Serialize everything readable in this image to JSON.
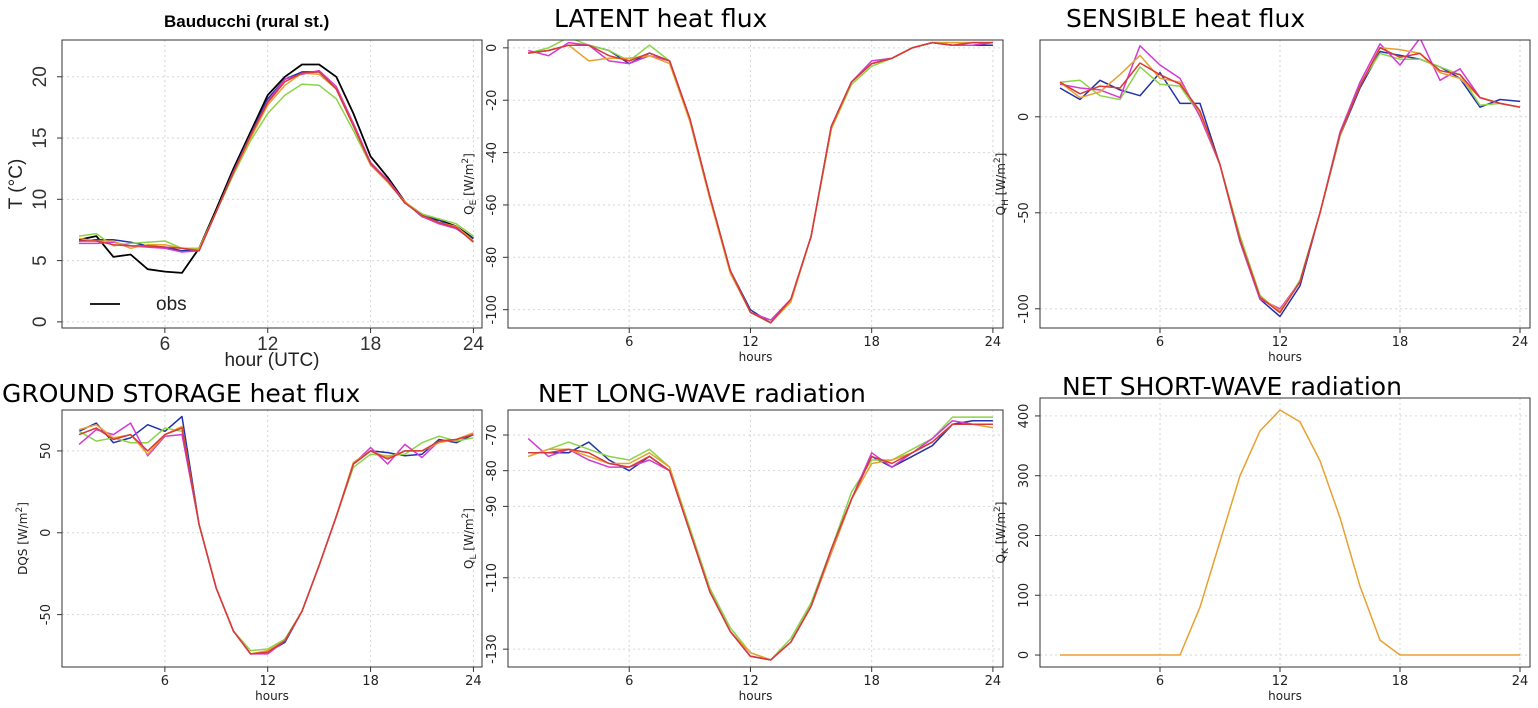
{
  "chart_data": [
    {
      "type": "line",
      "title": "Bauducchi (rural st.)",
      "xlabel": "hour (UTC)",
      "ylabel": "T (°C)",
      "xlim": [
        0,
        24.5
      ],
      "ylim": [
        -0.5,
        23
      ],
      "xticks": [
        6,
        12,
        18,
        24
      ],
      "yticks": [
        0,
        5,
        10,
        15,
        20
      ],
      "grid": true,
      "legend": {
        "position": "bottom-left",
        "entries": [
          "obs"
        ]
      },
      "x": [
        1,
        2,
        3,
        4,
        5,
        6,
        7,
        8,
        9,
        10,
        11,
        12,
        13,
        14,
        15,
        16,
        17,
        18,
        19,
        20,
        21,
        22,
        23,
        24
      ],
      "series": [
        {
          "name": "obs",
          "color": "#000000",
          "values": [
            6.7,
            7.0,
            5.3,
            5.5,
            4.3,
            4.1,
            4.0,
            6.0,
            9.2,
            12.5,
            15.5,
            18.5,
            20.0,
            21.0,
            21.0,
            20.0,
            17.0,
            13.5,
            11.8,
            9.8,
            8.6,
            8.3,
            7.8,
            6.8
          ]
        },
        {
          "color": "#2233aa",
          "values": [
            6.6,
            6.7,
            6.7,
            6.5,
            6.2,
            6.1,
            5.8,
            5.9,
            9.0,
            12.3,
            15.3,
            18.2,
            19.8,
            20.4,
            20.4,
            19.0,
            16.0,
            13.0,
            11.5,
            9.7,
            8.8,
            8.3,
            7.6,
            6.8
          ]
        },
        {
          "color": "#8bd448",
          "values": [
            7.0,
            7.2,
            6.2,
            6.4,
            6.5,
            6.6,
            6.0,
            6.0,
            9.0,
            12.0,
            14.8,
            17.0,
            18.5,
            19.4,
            19.3,
            18.2,
            15.6,
            12.8,
            11.4,
            9.8,
            8.8,
            8.4,
            8.0,
            7.0
          ]
        },
        {
          "color": "#d43ad4",
          "values": [
            6.4,
            6.4,
            6.5,
            6.2,
            6.1,
            6.0,
            5.7,
            5.8,
            9.0,
            12.2,
            15.2,
            18.0,
            19.8,
            20.2,
            20.5,
            19.2,
            16.2,
            13.0,
            11.6,
            9.8,
            8.6,
            8.0,
            7.6,
            6.6
          ]
        },
        {
          "color": "#e8a030",
          "values": [
            6.8,
            6.6,
            6.6,
            6.0,
            6.3,
            6.3,
            6.0,
            5.9,
            9.0,
            12.2,
            15.0,
            17.7,
            19.3,
            20.3,
            20.2,
            19.0,
            16.0,
            12.8,
            11.4,
            9.8,
            8.7,
            8.1,
            7.8,
            6.6
          ]
        },
        {
          "color": "#d83a3a",
          "values": [
            6.6,
            6.6,
            6.3,
            6.2,
            6.2,
            6.1,
            6.0,
            5.8,
            9.0,
            12.2,
            15.2,
            17.9,
            19.6,
            20.3,
            20.4,
            19.0,
            16.0,
            12.9,
            11.5,
            9.7,
            8.7,
            8.1,
            7.7,
            6.5
          ]
        }
      ]
    },
    {
      "type": "line",
      "title": "LATENT heat flux",
      "xlabel": "hours",
      "ylabel": "Q_E [W/m^2]",
      "xlim": [
        0,
        24.5
      ],
      "ylim": [
        -107,
        3
      ],
      "xticks": [
        6,
        12,
        18,
        24
      ],
      "yticks": [
        0,
        -20,
        -40,
        -60,
        -80,
        -100
      ],
      "grid": true,
      "x": [
        1,
        2,
        3,
        4,
        5,
        6,
        7,
        8,
        9,
        10,
        11,
        12,
        13,
        14,
        15,
        16,
        17,
        18,
        19,
        20,
        21,
        22,
        23,
        24
      ],
      "series": [
        {
          "color": "#2233aa",
          "values": [
            -2,
            -1,
            1,
            1,
            -1,
            -6,
            -2,
            -5,
            -27,
            -57,
            -85,
            -100,
            -105,
            -96,
            -72,
            -30,
            -13,
            -6,
            -4,
            0,
            2,
            1,
            1,
            1
          ]
        },
        {
          "color": "#8bd448",
          "values": [
            -2,
            0,
            4,
            1,
            -1,
            -5,
            1,
            -5,
            -27,
            -57,
            -85,
            -101,
            -105,
            -96,
            -72,
            -31,
            -14,
            -7,
            -4,
            0,
            2,
            2,
            2,
            2
          ]
        },
        {
          "color": "#d43ad4",
          "values": [
            -1,
            -3,
            2,
            1,
            -5,
            -6,
            -3,
            -5,
            -27,
            -57,
            -85,
            -101,
            -104,
            -96,
            -72,
            -30,
            -13,
            -5,
            -4,
            0,
            2,
            1,
            1,
            2
          ]
        },
        {
          "color": "#e8a030",
          "values": [
            -2,
            -1,
            1,
            -5,
            -4,
            -4,
            -3,
            -6,
            -28,
            -58,
            -86,
            -101,
            -105,
            -97,
            -72,
            -31,
            -13,
            -6,
            -4,
            0,
            2,
            2,
            2,
            2
          ]
        },
        {
          "color": "#d83a3a",
          "values": [
            -2,
            -1,
            1,
            1,
            -3,
            -5,
            -2,
            -5,
            -27,
            -57,
            -85,
            -101,
            -105,
            -96,
            -72,
            -30,
            -13,
            -6,
            -4,
            0,
            2,
            1,
            2,
            2
          ]
        }
      ]
    },
    {
      "type": "line",
      "title": "SENSIBLE heat flux",
      "xlabel": "hours",
      "ylabel": "Q_H [W/m^2]",
      "xlim": [
        0,
        24.5
      ],
      "ylim": [
        -110,
        40
      ],
      "xticks": [
        6,
        12,
        18,
        24
      ],
      "yticks": [
        0,
        -50,
        -100
      ],
      "grid": true,
      "x": [
        1,
        2,
        3,
        4,
        5,
        6,
        7,
        8,
        9,
        10,
        11,
        12,
        13,
        14,
        15,
        16,
        17,
        18,
        19,
        20,
        21,
        22,
        23,
        24
      ],
      "series": [
        {
          "color": "#2233aa",
          "values": [
            15,
            9,
            19,
            14,
            11,
            23,
            7,
            7,
            -25,
            -65,
            -95,
            -104,
            -88,
            -50,
            -10,
            15,
            34,
            32,
            30,
            26,
            20,
            5,
            9,
            8
          ]
        },
        {
          "color": "#8bd448",
          "values": [
            18,
            19,
            11,
            9,
            26,
            17,
            16,
            1,
            -25,
            -62,
            -93,
            -102,
            -85,
            -50,
            -10,
            17,
            33,
            30,
            30,
            26,
            22,
            6,
            7,
            5
          ]
        },
        {
          "color": "#d43ad4",
          "values": [
            17,
            15,
            14,
            10,
            37,
            27,
            20,
            0,
            -25,
            -65,
            -95,
            -100,
            -86,
            -50,
            -8,
            18,
            38,
            27,
            41,
            19,
            25,
            10,
            7,
            5
          ]
        },
        {
          "color": "#e8a030",
          "values": [
            18,
            10,
            13,
            22,
            32,
            20,
            18,
            2,
            -25,
            -64,
            -94,
            -101,
            -86,
            -50,
            -9,
            16,
            36,
            35,
            33,
            23,
            20,
            10,
            7,
            5
          ]
        },
        {
          "color": "#d83a3a",
          "values": [
            18,
            12,
            16,
            15,
            28,
            22,
            17,
            3,
            -25,
            -64,
            -94,
            -102,
            -86,
            -50,
            -9,
            16,
            36,
            31,
            33,
            24,
            22,
            10,
            7,
            5
          ]
        }
      ]
    },
    {
      "type": "line",
      "title": "GROUND STORAGE heat flux",
      "xlabel": "hours",
      "ylabel": "DQS [W/m^2]",
      "xlim": [
        0,
        24.5
      ],
      "ylim": [
        -82,
        75
      ],
      "xticks": [
        6,
        12,
        18,
        24
      ],
      "yticks": [
        50,
        0,
        -50
      ],
      "grid": true,
      "x": [
        1,
        2,
        3,
        4,
        5,
        6,
        7,
        8,
        9,
        10,
        11,
        12,
        13,
        14,
        15,
        16,
        17,
        18,
        19,
        20,
        21,
        22,
        23,
        24
      ],
      "series": [
        {
          "color": "#2233aa",
          "values": [
            62,
            67,
            55,
            58,
            66,
            62,
            71,
            5,
            -34,
            -60,
            -74,
            -73,
            -67,
            -48,
            -20,
            10,
            42,
            50,
            49,
            47,
            48,
            57,
            55,
            60
          ]
        },
        {
          "color": "#8bd448",
          "values": [
            62,
            56,
            58,
            55,
            55,
            64,
            62,
            5,
            -34,
            -60,
            -72,
            -71,
            -65,
            -48,
            -20,
            10,
            40,
            48,
            47,
            48,
            55,
            59,
            56,
            58
          ]
        },
        {
          "color": "#d43ad4",
          "values": [
            54,
            63,
            60,
            67,
            47,
            59,
            60,
            5,
            -34,
            -60,
            -74,
            -74,
            -66,
            -48,
            -20,
            10,
            42,
            52,
            42,
            54,
            46,
            56,
            57,
            61
          ]
        },
        {
          "color": "#e8a030",
          "values": [
            63,
            66,
            58,
            60,
            48,
            60,
            65,
            5,
            -34,
            -60,
            -74,
            -72,
            -66,
            -48,
            -20,
            10,
            43,
            50,
            46,
            50,
            50,
            55,
            57,
            61
          ]
        },
        {
          "color": "#d83a3a",
          "values": [
            60,
            64,
            57,
            60,
            50,
            60,
            64,
            5,
            -34,
            -60,
            -74,
            -73,
            -66,
            -48,
            -20,
            10,
            42,
            50,
            45,
            50,
            50,
            56,
            57,
            60
          ]
        }
      ]
    },
    {
      "type": "line",
      "title": "NET LONG-WAVE radiation",
      "xlabel": "hours",
      "ylabel": "Q_L [W/m^2]",
      "xlim": [
        0,
        24.5
      ],
      "ylim": [
        -135,
        -63
      ],
      "xticks": [
        6,
        12,
        18,
        24
      ],
      "yticks": [
        -70,
        -80,
        -90,
        -110,
        -130
      ],
      "grid": true,
      "x": [
        1,
        2,
        3,
        4,
        5,
        6,
        7,
        8,
        9,
        10,
        11,
        12,
        13,
        14,
        15,
        16,
        17,
        18,
        19,
        20,
        21,
        22,
        23,
        24
      ],
      "series": [
        {
          "color": "#2233aa",
          "values": [
            -75,
            -75,
            -75,
            -72,
            -77,
            -80,
            -76,
            -80,
            -97,
            -114,
            -125,
            -132,
            -133,
            -128,
            -118,
            -103,
            -88,
            -76,
            -79,
            -76,
            -73,
            -67,
            -66,
            -66
          ]
        },
        {
          "color": "#8bd448",
          "values": [
            -76,
            -74,
            -72,
            -74,
            -76,
            -77,
            -74,
            -79,
            -96,
            -113,
            -124,
            -131,
            -133,
            -127,
            -117,
            -102,
            -86,
            -77,
            -77,
            -74,
            -71,
            -65,
            -65,
            -65
          ]
        },
        {
          "color": "#d43ad4",
          "values": [
            -71,
            -76,
            -74,
            -77,
            -79,
            -79,
            -77,
            -80,
            -97,
            -114,
            -125,
            -132,
            -133,
            -128,
            -118,
            -102,
            -88,
            -75,
            -79,
            -75,
            -71,
            -66,
            -67,
            -67
          ]
        },
        {
          "color": "#e8a030",
          "values": [
            -76,
            -74,
            -74,
            -76,
            -78,
            -78,
            -75,
            -79,
            -97,
            -114,
            -125,
            -131,
            -133,
            -128,
            -118,
            -103,
            -88,
            -78,
            -77,
            -75,
            -72,
            -67,
            -67,
            -68
          ]
        },
        {
          "color": "#d83a3a",
          "values": [
            -75,
            -75,
            -74,
            -75,
            -78,
            -79,
            -76,
            -80,
            -97,
            -114,
            -125,
            -132,
            -133,
            -128,
            -118,
            -102,
            -88,
            -76,
            -78,
            -75,
            -72,
            -67,
            -67,
            -67
          ]
        }
      ]
    },
    {
      "type": "line",
      "title": "NET SHORT-WAVE radiation",
      "xlabel": "hours",
      "ylabel": "Q_K [W/m^2]",
      "xlim": [
        0,
        24.5
      ],
      "ylim": [
        -20,
        430
      ],
      "xticks": [
        6,
        12,
        18,
        24
      ],
      "yticks": [
        0,
        100,
        200,
        300,
        400
      ],
      "grid": true,
      "x": [
        1,
        2,
        3,
        4,
        5,
        6,
        7,
        8,
        9,
        10,
        11,
        12,
        13,
        14,
        15,
        16,
        17,
        18,
        19,
        20,
        21,
        22,
        23,
        24
      ],
      "series": [
        {
          "color": "#e8a030",
          "values": [
            0,
            0,
            0,
            0,
            0,
            0,
            0,
            80,
            190,
            300,
            375,
            410,
            390,
            325,
            230,
            115,
            25,
            0,
            0,
            0,
            0,
            0,
            0,
            0
          ]
        }
      ]
    }
  ]
}
